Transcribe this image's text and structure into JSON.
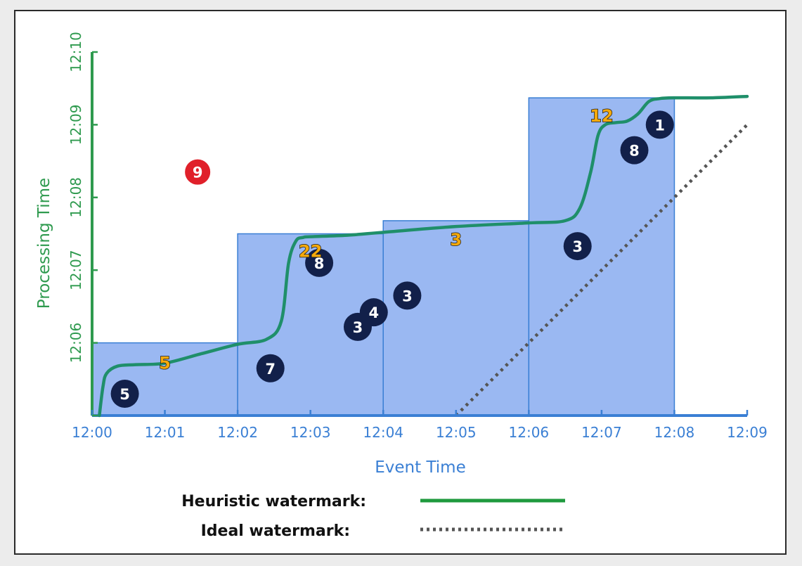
{
  "chart_data": {
    "type": "line",
    "xlabel": "Event Time",
    "ylabel": "Processing Time",
    "x_ticks": [
      "12:00",
      "12:01",
      "12:02",
      "12:03",
      "12:04",
      "12:05",
      "12:06",
      "12:07",
      "12:08",
      "12:09"
    ],
    "y_ticks": [
      "12:06",
      "12:07",
      "12:08",
      "12:09",
      "12:10"
    ],
    "xlim": [
      0,
      9
    ],
    "ylim": [
      5,
      10
    ],
    "x_units": "minutes after 12:00",
    "y_units": "minutes after 12:00",
    "windows": [
      {
        "start": 0,
        "end": 2,
        "top": 6.0
      },
      {
        "start": 2,
        "end": 4,
        "top": 7.5
      },
      {
        "start": 4,
        "end": 6,
        "top": 7.68
      },
      {
        "start": 6,
        "end": 8,
        "top": 9.37
      }
    ],
    "heuristic_watermark": {
      "name": "Heuristic watermark",
      "x": [
        0.1,
        0.15,
        0.2,
        0.35,
        0.6,
        1.0,
        1.5,
        2.0,
        2.4,
        2.6,
        2.7,
        2.8,
        2.9,
        3.0,
        3.5,
        4.0,
        5.0,
        6.0,
        6.5,
        6.7,
        6.85,
        6.95,
        7.05,
        7.2,
        7.35,
        7.5,
        7.65,
        7.8,
        8.0,
        8.5,
        9.0
      ],
      "y": [
        5.0,
        5.4,
        5.58,
        5.68,
        5.7,
        5.72,
        5.85,
        5.98,
        6.05,
        6.3,
        7.1,
        7.4,
        7.45,
        7.46,
        7.48,
        7.52,
        7.6,
        7.65,
        7.68,
        7.85,
        8.35,
        8.85,
        9.0,
        9.03,
        9.05,
        9.15,
        9.32,
        9.36,
        9.37,
        9.37,
        9.39
      ]
    },
    "ideal_watermark": {
      "name": "Ideal watermark",
      "x": [
        5.0,
        9.0
      ],
      "y": [
        5.0,
        9.0
      ]
    },
    "points": [
      {
        "x": 0.45,
        "y": 5.3,
        "label": "5",
        "kind": "on_time"
      },
      {
        "x": 2.45,
        "y": 5.65,
        "label": "7",
        "kind": "on_time"
      },
      {
        "x": 3.12,
        "y": 7.1,
        "label": "8",
        "kind": "on_time"
      },
      {
        "x": 3.65,
        "y": 6.22,
        "label": "3",
        "kind": "on_time"
      },
      {
        "x": 3.87,
        "y": 6.42,
        "label": "4",
        "kind": "on_time"
      },
      {
        "x": 4.33,
        "y": 6.65,
        "label": "3",
        "kind": "on_time"
      },
      {
        "x": 6.67,
        "y": 7.33,
        "label": "3",
        "kind": "on_time"
      },
      {
        "x": 7.45,
        "y": 8.65,
        "label": "8",
        "kind": "on_time"
      },
      {
        "x": 7.8,
        "y": 9.0,
        "label": "1",
        "kind": "on_time"
      },
      {
        "x": 1.45,
        "y": 8.35,
        "label": "9",
        "kind": "late"
      }
    ],
    "results": [
      {
        "x": 1.0,
        "y": 5.72,
        "label": "5"
      },
      {
        "x": 3.0,
        "y": 7.26,
        "label": "22"
      },
      {
        "x": 5.0,
        "y": 7.42,
        "label": "3"
      },
      {
        "x": 7.0,
        "y": 9.12,
        "label": "12"
      }
    ],
    "legend": [
      {
        "label": "Heuristic watermark:",
        "style": "solid"
      },
      {
        "label": "Ideal watermark:",
        "style": "dotted"
      }
    ],
    "colors": {
      "window_fill": "#9ab8f2",
      "window_stroke": "#3a7fd4",
      "heuristic_line": "#1f8f6a",
      "ideal_line": "#555555",
      "axis_x": "#3a7fd4",
      "axis_y": "#2e9a4e",
      "point": "#12204a",
      "late_point": "#e0202a",
      "result": "#f4a90c"
    }
  }
}
